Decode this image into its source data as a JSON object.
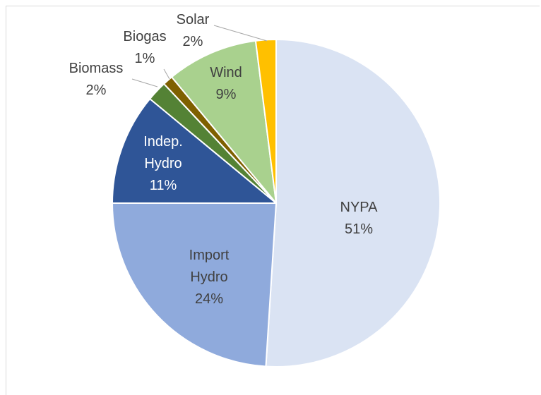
{
  "chart_data": {
    "type": "pie",
    "start_angle_deg": 0,
    "direction": "clockwise",
    "slices": [
      {
        "name": "NYPA",
        "value": 51,
        "label": "51%",
        "color": "#dae3f3",
        "label_lines": [
          "NYPA",
          "51%"
        ]
      },
      {
        "name": "Import Hydro",
        "value": 24,
        "label": "24%",
        "color": "#8faadc",
        "label_lines": [
          "Import",
          "Hydro",
          "24%"
        ]
      },
      {
        "name": "Indep. Hydro",
        "value": 11,
        "label": "11%",
        "color": "#2f5597",
        "label_lines": [
          "Indep.",
          "Hydro",
          "11%"
        ]
      },
      {
        "name": "Biomass",
        "value": 2,
        "label": "2%",
        "color": "#548235",
        "label_lines": [
          "Biomass",
          "2%"
        ]
      },
      {
        "name": "Biogas",
        "value": 1,
        "label": "1%",
        "color": "#7f6000",
        "label_lines": [
          "Biogas",
          "1%"
        ]
      },
      {
        "name": "Wind",
        "value": 9,
        "label": "9%",
        "color": "#a9d18e",
        "label_lines": [
          "Wind",
          "9%"
        ]
      },
      {
        "name": "Solar",
        "value": 2,
        "label": "2%",
        "color": "#ffc000",
        "label_lines": [
          "Solar",
          "2%"
        ]
      }
    ]
  }
}
